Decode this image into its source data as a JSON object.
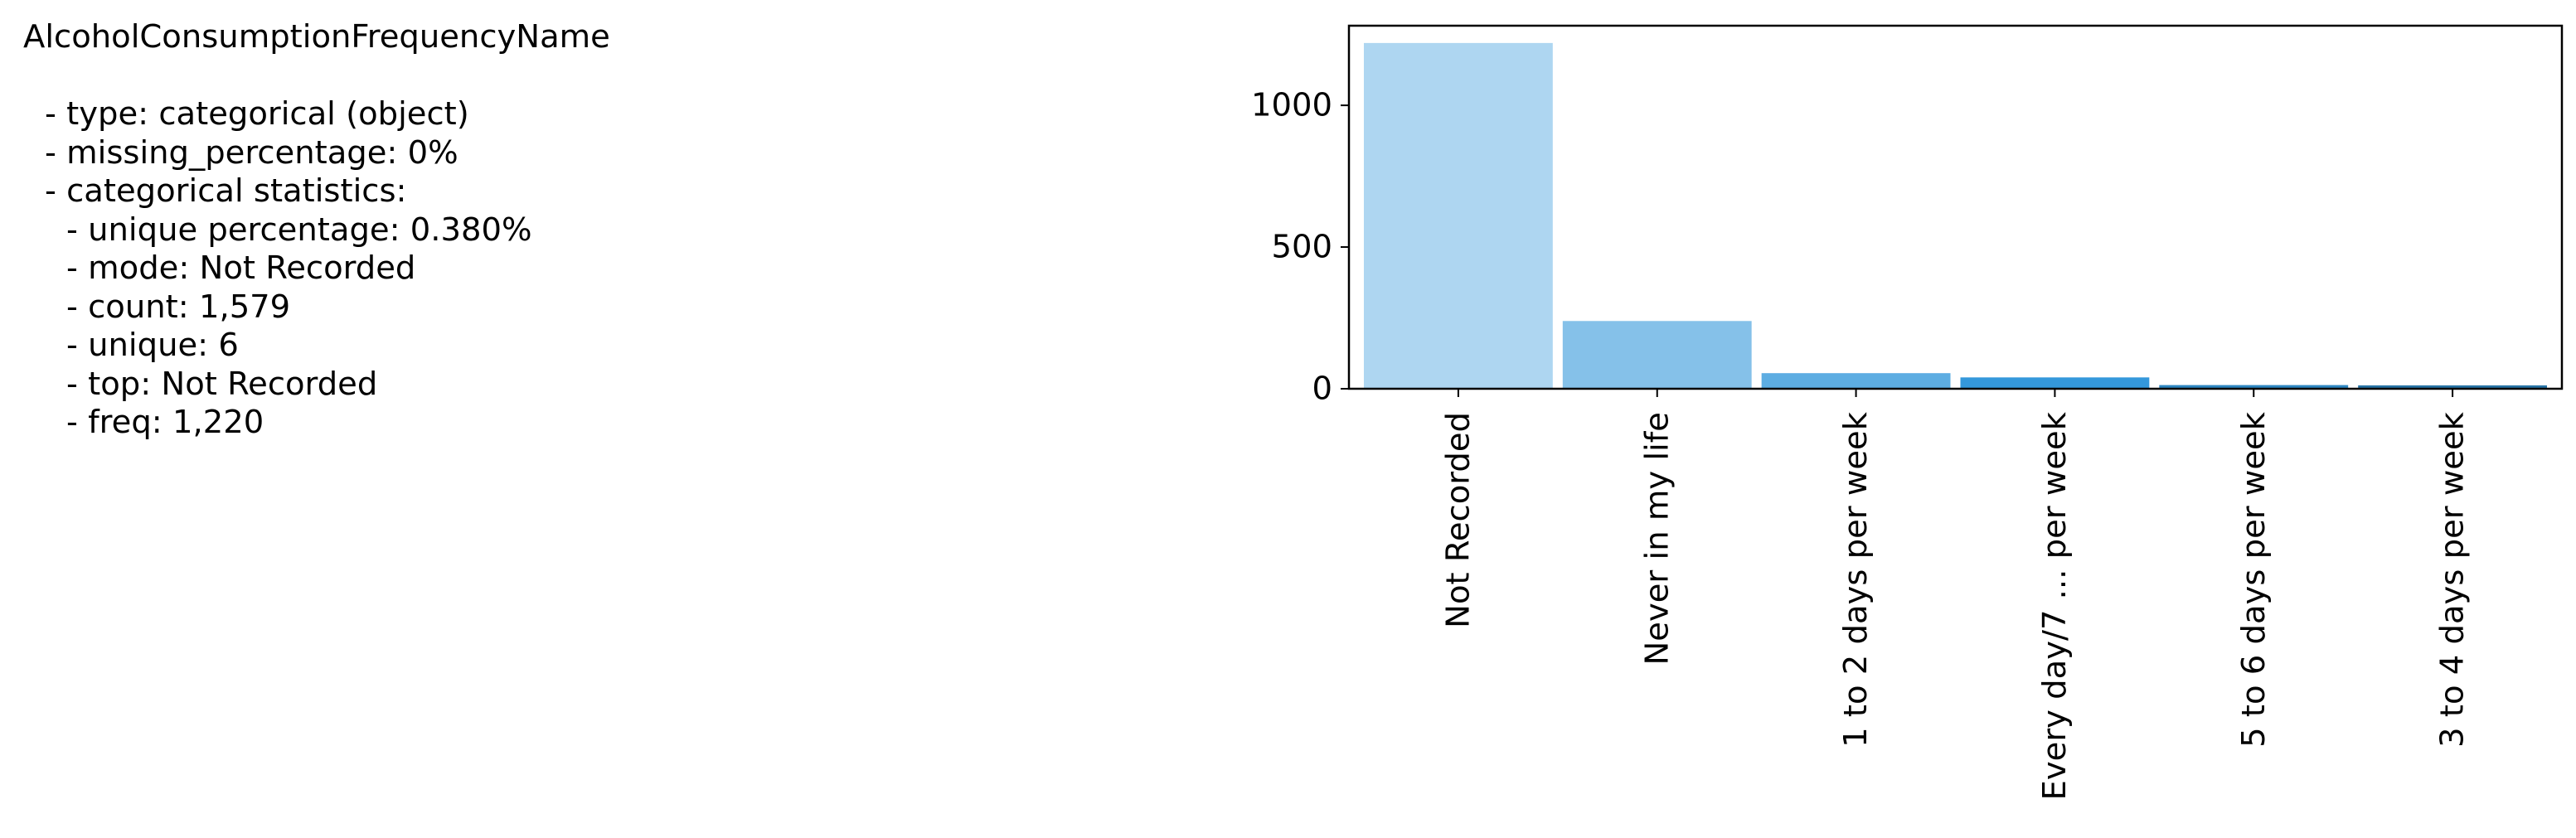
{
  "panel": {
    "title": "AlcoholConsumptionFrequencyName",
    "lines": [
      {
        "text": "- type: categorical (object)",
        "level": 1
      },
      {
        "text": "- missing_percentage: 0%",
        "level": 1
      },
      {
        "text": "- categorical statistics:",
        "level": 1
      },
      {
        "text": "- unique percentage: 0.380%",
        "level": 2
      },
      {
        "text": "- mode: Not Recorded",
        "level": 2
      },
      {
        "text": "- count: 1,579",
        "level": 2
      },
      {
        "text": "- unique: 6",
        "level": 2
      },
      {
        "text": "- top: Not Recorded",
        "level": 2
      },
      {
        "text": "- freq: 1,220",
        "level": 2
      }
    ]
  },
  "chart_data": {
    "type": "bar",
    "title": "",
    "xlabel": "",
    "ylabel": "",
    "categories": [
      "Not Recorded",
      "Never in my life",
      "1 to 2 days per week",
      "Every day/7 ... per week",
      "5 to 6 days per week",
      "3 to 4 days per week"
    ],
    "values": [
      1220,
      239,
      55,
      40,
      13,
      12
    ],
    "ylim": [
      0,
      1281
    ],
    "yticks": [
      0,
      500,
      1000
    ],
    "ytick_labels": [
      "0",
      "500",
      "1000"
    ],
    "grid": false,
    "legend": "none",
    "colors": [
      "#aed6f1",
      "#85c1e9",
      "#5dade2",
      "#3498db",
      "#2e86c1",
      "#2874a6"
    ],
    "axis_color": "#000000"
  }
}
